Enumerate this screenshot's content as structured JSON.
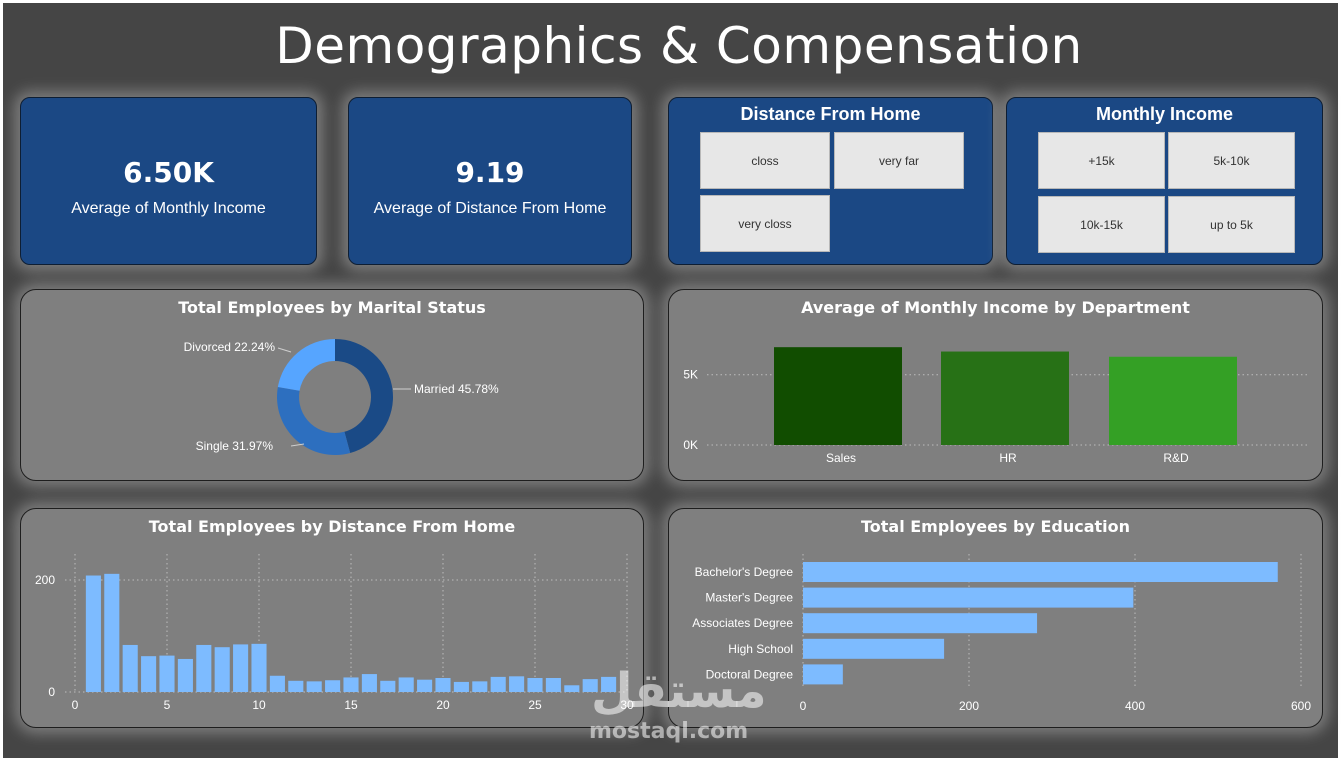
{
  "page": {
    "title": "Demographics & Compensation"
  },
  "kpis": [
    {
      "value": "6.50K",
      "label": "Average of Monthly Income"
    },
    {
      "value": "9.19",
      "label": "Average of Distance From Home"
    }
  ],
  "slicers": {
    "distance": {
      "title": "Distance From Home",
      "options": [
        "closs",
        "very far",
        "very closs"
      ]
    },
    "income": {
      "title": "Monthly Income",
      "options": [
        "+15k",
        "5k-10k",
        "10k-15k",
        "up to 5k"
      ]
    }
  },
  "colors": {
    "navy": "#1b4884",
    "panel": "#7f7f7f",
    "lightblue": "#7dbbff",
    "married": "#1a4a86",
    "single": "#2d6fbf",
    "divorced": "#56a5ff",
    "sales": "#114d00",
    "hr": "#277116",
    "rd": "#34a025"
  },
  "watermark": {
    "arabic": "مستقل",
    "latin": "mostaql.com"
  },
  "chart_data": [
    {
      "type": "pie",
      "title": "Total Employees by Marital Status",
      "slices": [
        {
          "name": "Married",
          "label": "Married 45.78%",
          "value": 45.78
        },
        {
          "name": "Single",
          "label": "Single 31.97%",
          "value": 31.97
        },
        {
          "name": "Divorced",
          "label": "Divorced 22.24%",
          "value": 22.24
        }
      ],
      "donut": true
    },
    {
      "type": "bar",
      "title": "Average of Monthly Income by Department",
      "categories": [
        "Sales",
        "HR",
        "R&D"
      ],
      "values": [
        6960,
        6650,
        6280
      ],
      "ylim": [
        0,
        7400
      ],
      "yticks": [
        {
          "v": 0,
          "label": "0K"
        },
        {
          "v": 5000,
          "label": "5K"
        }
      ],
      "grid": true
    },
    {
      "type": "bar",
      "title": "Total Employees by Distance From Home",
      "x": [
        1,
        2,
        3,
        4,
        5,
        6,
        7,
        8,
        9,
        10,
        11,
        12,
        13,
        14,
        15,
        16,
        17,
        18,
        19,
        20,
        21,
        22,
        23,
        24,
        25,
        26,
        27,
        28,
        29
      ],
      "values": [
        208,
        211,
        84,
        64,
        65,
        59,
        84,
        80,
        85,
        86,
        29,
        20,
        19,
        21,
        26,
        32,
        20,
        26,
        22,
        25,
        18,
        19,
        27,
        28,
        25,
        25,
        12,
        23,
        27
      ],
      "xlim": [
        0,
        30
      ],
      "ylim": [
        0,
        250
      ],
      "xticks": [
        0,
        5,
        10,
        15,
        20,
        25,
        30
      ],
      "yticks": [
        0,
        200
      ],
      "grid": true
    },
    {
      "type": "bar",
      "orientation": "horizontal",
      "title": "Total Employees by Education",
      "categories": [
        "Bachelor's Degree",
        "Master's Degree",
        "Associates Degree",
        "High School",
        "Doctoral Degree"
      ],
      "values": [
        572,
        398,
        282,
        170,
        48
      ],
      "xlim": [
        0,
        600
      ],
      "xticks": [
        0,
        200,
        400,
        600
      ],
      "grid": true
    }
  ]
}
